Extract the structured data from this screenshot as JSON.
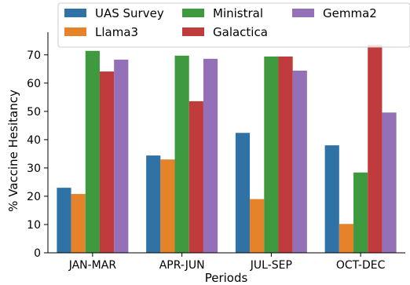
{
  "chart_data": {
    "type": "bar",
    "title": "",
    "xlabel": "Periods",
    "ylabel": "% Vaccine Hesitancy",
    "categories": [
      "JAN-MAR",
      "APR-JUN",
      "JUL-SEP",
      "OCT-DEC"
    ],
    "ylim": [
      0,
      78
    ],
    "yticks": [
      0,
      10,
      20,
      30,
      40,
      50,
      60,
      70
    ],
    "grid": false,
    "legend_position": "top",
    "series": [
      {
        "name": "UAS Survey",
        "color": "#2f73a6",
        "values": [
          23.0,
          34.4,
          42.4,
          38.0
        ]
      },
      {
        "name": "Llama3",
        "color": "#e5822a",
        "values": [
          20.8,
          33.0,
          19.0,
          10.2
        ]
      },
      {
        "name": "Ministral",
        "color": "#3f9a3f",
        "values": [
          71.4,
          69.7,
          69.4,
          28.4
        ]
      },
      {
        "name": "Galactica",
        "color": "#c03b3b",
        "values": [
          64.1,
          53.6,
          69.4,
          73.5
        ]
      },
      {
        "name": "Gemma2",
        "color": "#9470b9",
        "values": [
          68.3,
          68.6,
          64.4,
          49.6
        ]
      }
    ]
  }
}
